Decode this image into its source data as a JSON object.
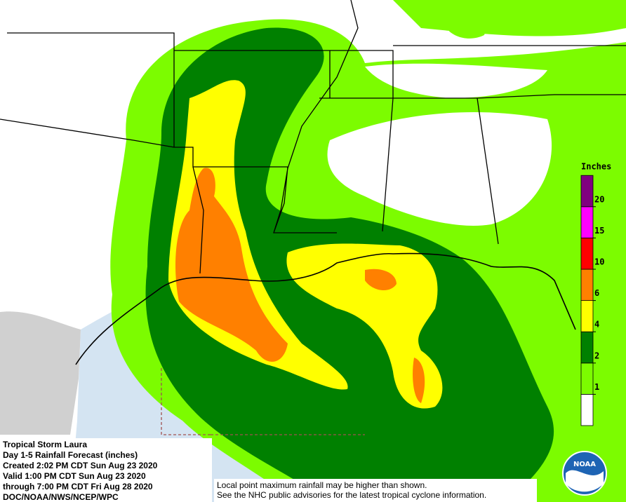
{
  "map": {
    "legend": {
      "title": "Inches",
      "ticks": [
        1,
        2,
        4,
        6,
        10,
        15,
        20
      ],
      "colors": [
        "#ffffff",
        "#7cfc00",
        "#008000",
        "#ffff00",
        "#ff8000",
        "#ff0000",
        "#ff00ff",
        "#800080"
      ]
    },
    "info": [
      "Tropical Storm Laura",
      "Day 1-5 Rainfall Forecast (inches)",
      "Created 2:02 PM CDT Sun Aug 23 2020",
      "Valid 1:00 PM CDT Sun Aug 23 2020",
      "through 7:00 PM CDT Fri Aug 28 2020",
      "DOC/NOAA/NWS/NCEP/WPC"
    ],
    "note": [
      "Local point maximum rainfall may be higher than shown.",
      "See the NHC public advisories for the latest tropical cyclone information."
    ],
    "logo": "NOAA"
  }
}
